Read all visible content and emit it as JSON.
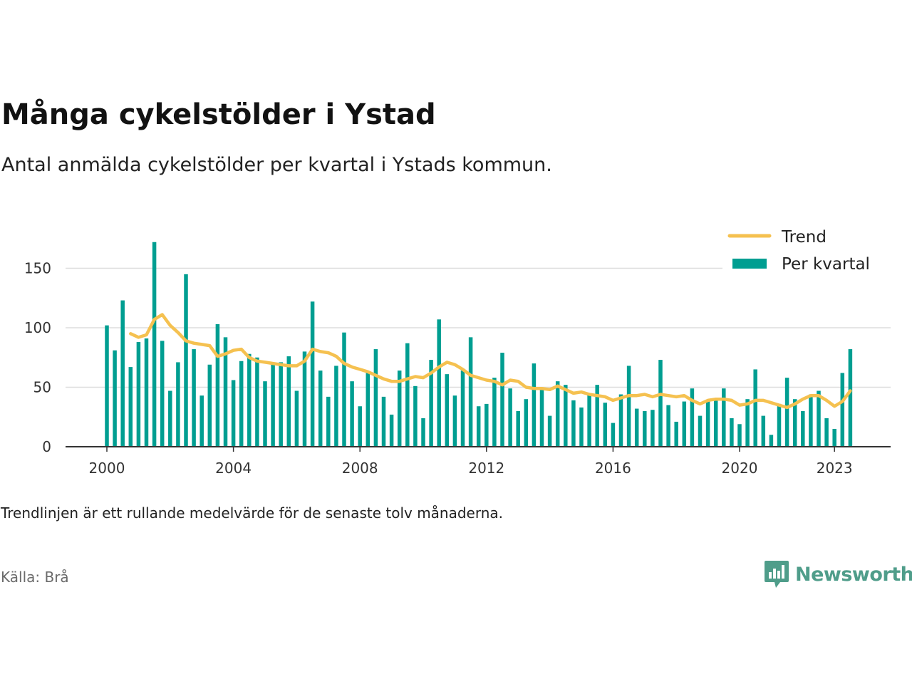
{
  "title": "Många cykelstölder i Ystad",
  "subtitle": "Antal anmälda cykelstölder per kvartal i Ystads kommun.",
  "note": "Trendlinjen är ett rullande medelvärde för de senaste tolv månaderna.",
  "source": "Källa: Brå",
  "brand": {
    "name": "Newsworthy",
    "color": "#4f9d8a"
  },
  "colors": {
    "bars": "#009e91",
    "trend": "#f5c150",
    "grid": "#dddddd",
    "axis": "#333333"
  },
  "chart_data": {
    "type": "bar",
    "x_start": "2000 Q1",
    "x_ticks": [
      "2000",
      "2004",
      "2008",
      "2012",
      "2016",
      "2020",
      "2023"
    ],
    "ylim": [
      0,
      175
    ],
    "y_ticks": [
      0,
      50,
      100,
      150
    ],
    "grid": true,
    "legend": {
      "position": "top-right"
    },
    "series": [
      {
        "name": "Per kvartal",
        "type": "bar",
        "values": [
          102,
          81,
          123,
          67,
          88,
          91,
          172,
          89,
          47,
          71,
          145,
          82,
          43,
          69,
          103,
          92,
          56,
          72,
          78,
          75,
          55,
          69,
          71,
          76,
          47,
          80,
          122,
          64,
          42,
          68,
          96,
          55,
          34,
          62,
          82,
          42,
          27,
          64,
          87,
          51,
          24,
          73,
          107,
          61,
          43,
          64,
          92,
          34,
          36,
          58,
          79,
          49,
          30,
          40,
          70,
          48,
          26,
          55,
          52,
          39,
          33,
          44,
          52,
          37,
          20,
          44,
          68,
          32,
          30,
          31,
          73,
          35,
          21,
          38,
          49,
          26,
          38,
          41,
          49,
          24,
          19,
          40,
          65,
          26,
          10,
          36,
          58,
          40,
          30,
          44,
          47,
          24,
          15,
          62,
          82
        ]
      },
      {
        "name": "Trend",
        "type": "line",
        "values": [
          null,
          null,
          null,
          95,
          92,
          94,
          107,
          111,
          102,
          96,
          89,
          87,
          86,
          85,
          76,
          78,
          81,
          82,
          75,
          72,
          71,
          70,
          69,
          68,
          68,
          72,
          82,
          80,
          79,
          76,
          70,
          67,
          65,
          63,
          60,
          57,
          55,
          55,
          57,
          59,
          58,
          62,
          67,
          71,
          69,
          65,
          60,
          58,
          56,
          55,
          52,
          56,
          55,
          50,
          49,
          49,
          48,
          51,
          48,
          45,
          46,
          44,
          43,
          42,
          39,
          41,
          43,
          43,
          44,
          42,
          44,
          43,
          42,
          43,
          39,
          36,
          39,
          40,
          40,
          39,
          35,
          36,
          39,
          39,
          37,
          35,
          33,
          36,
          40,
          43,
          43,
          39,
          34,
          38,
          47
        ]
      }
    ]
  }
}
